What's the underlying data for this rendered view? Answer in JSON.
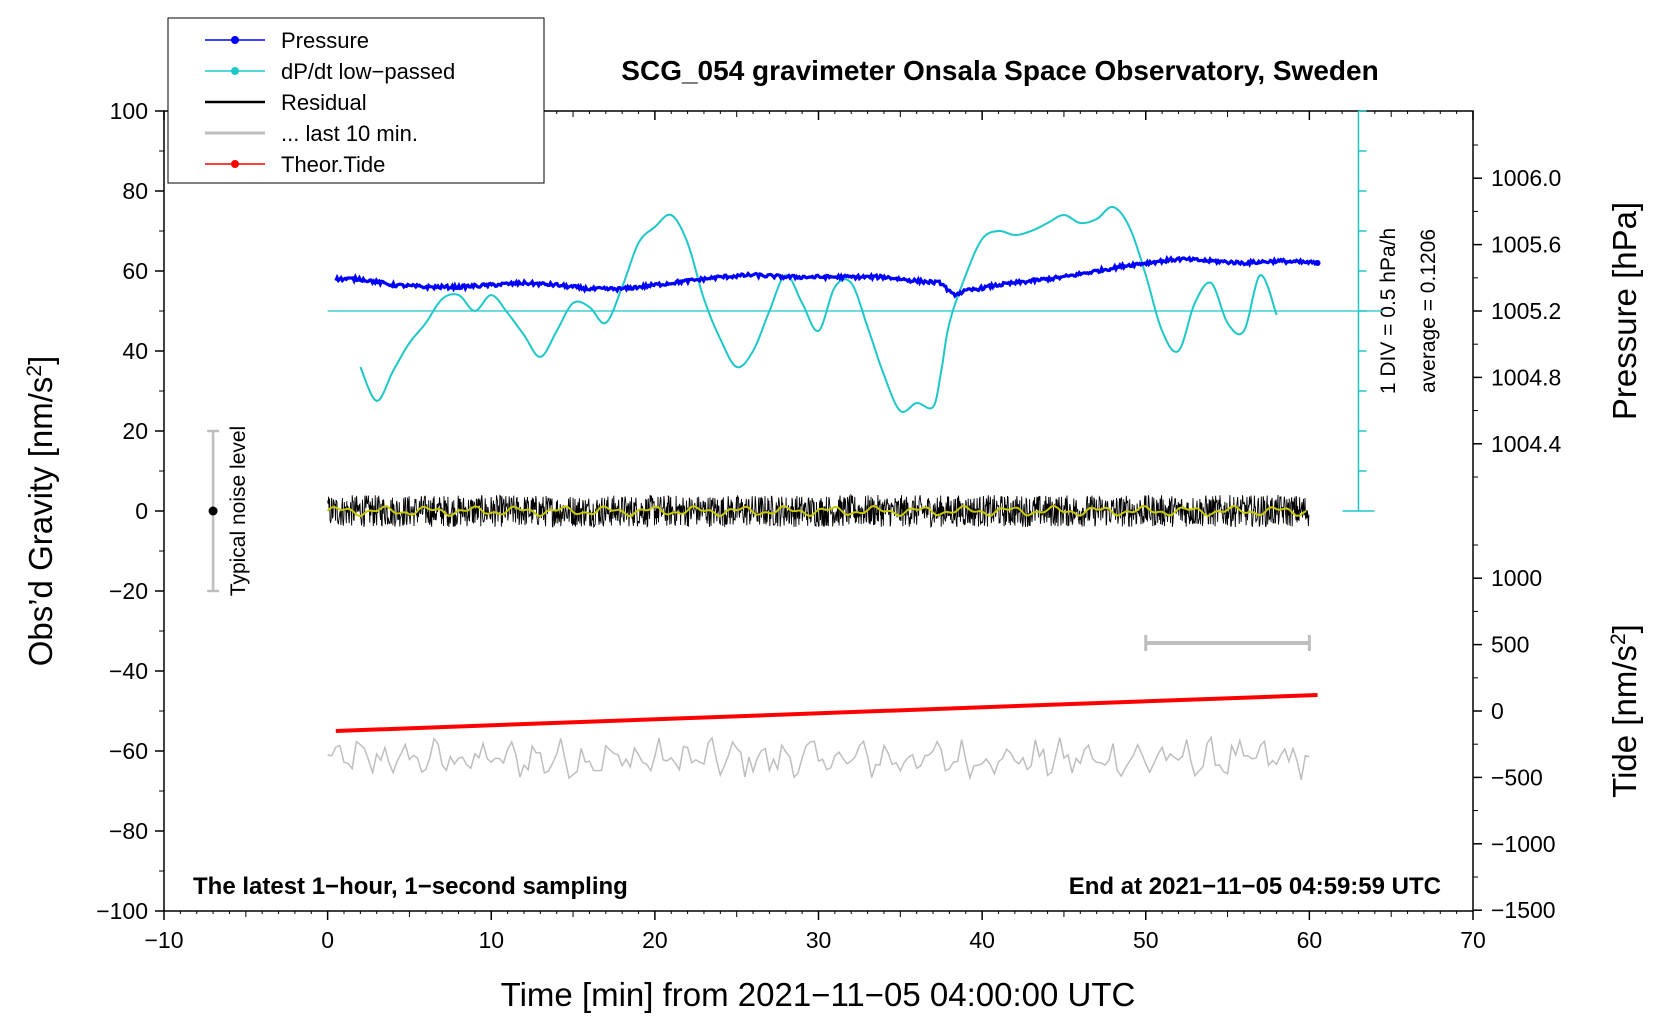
{
  "chart_data": {
    "type": "line",
    "title": "SCG_054 gravimeter Onsala Space Observatory, Sweden",
    "xlabel": "Time [min] from 2021−11−05 04:00:00 UTC",
    "ylabel_left": "Obs’d Gravity [nm/s",
    "ylabel_left_sup": "2",
    "ylabel_left_end": "]",
    "ylabel_right_top": "Pressure [hPa]",
    "ylabel_right_bottom": "Tide [nm/s",
    "ylabel_right_bottom_sup": "2",
    "ylabel_right_bottom_end": "]",
    "xlim": [
      -10,
      70
    ],
    "ylim": [
      -100,
      100
    ],
    "x_ticks": [
      "−10",
      "0",
      "10",
      "20",
      "30",
      "40",
      "50",
      "60",
      "70"
    ],
    "y_ticks": [
      "−100",
      "−80",
      "−60",
      "−40",
      "−20",
      "0",
      "20",
      "40",
      "60",
      "80",
      "100"
    ],
    "pressure_axis": {
      "labels": [
        "1004.4",
        "1004.8",
        "1005.2",
        "1005.6",
        "1006.0"
      ],
      "values": [
        1004.4,
        1004.8,
        1005.2,
        1005.6,
        1006.0
      ],
      "gravity_at_1005_2": 50,
      "gravity_per_0_4_hPa": 16.6
    },
    "tide_axis": {
      "labels": [
        "−1500",
        "−1000",
        "−500",
        "0",
        "500",
        "1000"
      ],
      "values": [
        -1500,
        -1000,
        -500,
        0,
        500,
        1000
      ],
      "gravity_at_0": -50,
      "gravity_per_500": 16.6
    },
    "legend": {
      "position": "top-left",
      "entries": [
        {
          "label": "Pressure",
          "color": "#0000ff",
          "marker": true
        },
        {
          "label": "dP/dt low−passed",
          "color": "#1ec8c8",
          "marker": true
        },
        {
          "label": "Residual",
          "color": "#000000",
          "marker": false
        },
        {
          "label": "... last 10 min.",
          "color": "#bebebe",
          "marker": false
        },
        {
          "label": "Theor.Tide",
          "color": "#ff0000",
          "marker": true
        }
      ]
    },
    "annotations": {
      "bottom_left": "The latest 1−hour, 1−second sampling",
      "bottom_right": "End at 2021−11−05 04:59:59 UTC",
      "noise_label": "Typical noise level",
      "div_label": "1 DIV = 0.5 hPa/h",
      "average_label": "average = 0.1206"
    },
    "noise_bar": {
      "x": -7,
      "center": 0,
      "low": -20,
      "high": 20
    },
    "last_10_min_bar": {
      "x_start": 50,
      "x_end": 60,
      "y": -33
    },
    "dpdt_scale_bar": {
      "x": 63,
      "y_bottom": 0,
      "y_top": 100,
      "divisions": 10
    },
    "dpdt_baseline": {
      "y": 50,
      "x_start": 0,
      "x_end": 64.5
    },
    "series": [
      {
        "name": "Pressure",
        "color": "#0000ff",
        "x": [
          0.5,
          2,
          4,
          6,
          8,
          10,
          12,
          14,
          16,
          18,
          20,
          22,
          24,
          26,
          28,
          30,
          32,
          34,
          36,
          37.5,
          38.2,
          39,
          41,
          43,
          45,
          47,
          49,
          51,
          52,
          54,
          56,
          58,
          60.5
        ],
        "y": [
          58,
          58,
          56.5,
          56,
          56,
          56.5,
          57,
          56.5,
          55.5,
          55.5,
          56.5,
          57.5,
          58.5,
          59,
          58.5,
          58.5,
          58.5,
          58.5,
          57.5,
          57,
          54,
          55,
          56.5,
          57.5,
          58.5,
          60,
          61.5,
          62.5,
          63,
          62.5,
          62,
          62.5,
          62
        ]
      },
      {
        "name": "dP/dt low−passed",
        "color": "#1ec8c8",
        "x": [
          2,
          3,
          4,
          5,
          6,
          7,
          8,
          9,
          10,
          11,
          12,
          13,
          14,
          15,
          16,
          17,
          18,
          19,
          20,
          21,
          22,
          23,
          24,
          25,
          26,
          27,
          28,
          29,
          30,
          31,
          32,
          33,
          34,
          35,
          36,
          37,
          37.5,
          38,
          39,
          40,
          41,
          42,
          43,
          44,
          45,
          46,
          47,
          48,
          49,
          50,
          51,
          52,
          53,
          54,
          55,
          56,
          57,
          58
        ],
        "y": [
          36,
          27.5,
          35,
          42,
          47,
          53,
          54,
          50,
          54,
          49.5,
          44,
          38.5,
          45,
          52,
          51,
          47,
          56,
          67,
          71,
          74,
          67,
          53,
          43,
          36,
          40,
          50,
          59,
          52,
          45,
          56,
          57,
          46,
          34,
          25,
          27,
          26,
          35,
          47,
          59,
          68,
          70,
          69,
          70,
          72,
          74,
          72,
          73,
          76,
          71,
          59,
          45,
          40,
          52,
          57,
          47,
          45,
          59,
          49
        ]
      },
      {
        "name": "Residual",
        "color": "#000000",
        "x": [
          0,
          60
        ],
        "y": [
          0,
          0
        ],
        "noise_amplitude": 4
      },
      {
        "name": "Residual smoothed",
        "color": "#c8c800",
        "x": [
          0,
          60
        ],
        "y": [
          0,
          0
        ]
      },
      {
        "name": "... last 10 min.",
        "color": "#bebebe",
        "x": [
          0,
          60
        ],
        "y": [
          -62,
          -62
        ],
        "noise_amplitude": 4
      },
      {
        "name": "Theor.Tide",
        "color": "#ff0000",
        "x": [
          0.5,
          60.5
        ],
        "y": [
          -55,
          -46
        ]
      }
    ]
  }
}
